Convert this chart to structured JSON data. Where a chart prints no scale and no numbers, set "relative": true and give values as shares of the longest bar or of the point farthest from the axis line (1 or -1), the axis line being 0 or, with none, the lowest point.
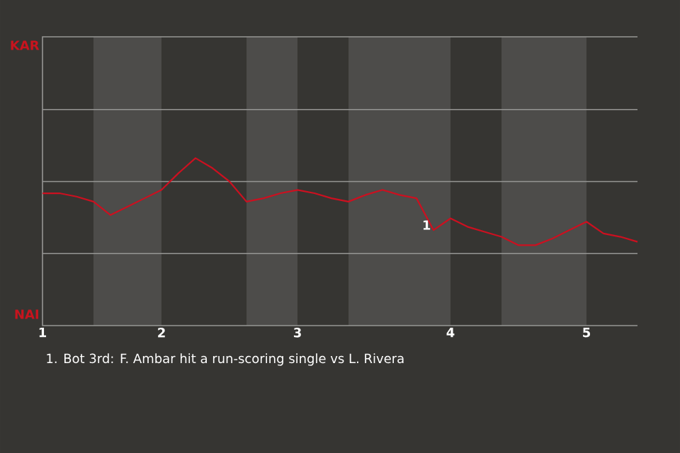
{
  "chart_data": {
    "type": "line",
    "relative": true,
    "categories": [
      "1",
      null,
      null,
      null,
      null,
      null,
      null,
      "2",
      null,
      null,
      null,
      null,
      null,
      null,
      null,
      "3",
      null,
      null,
      null,
      null,
      null,
      null,
      null,
      null,
      "4",
      null,
      null,
      null,
      null,
      null,
      null,
      null,
      "5",
      null,
      null,
      null
    ],
    "marker": "none",
    "line_style": "solid",
    "series": [
      {
        "color": "#cc1020",
        "values": [
          0.79,
          0.79,
          0.77,
          0.74,
          0.66,
          0.71,
          0.76,
          0.81,
          0.91,
          1,
          0.94,
          0.86,
          0.74,
          0.76,
          0.79,
          0.81,
          0.79,
          0.76,
          0.74,
          0.78,
          0.81,
          0.78,
          0.76,
          0.57,
          0.64,
          0.59,
          0.56,
          0.53,
          0.48,
          0.48,
          0.52,
          0.57,
          0.62,
          0.55,
          0.53,
          0.5
        ]
      }
    ],
    "ref_lines": [
      {
        "axis": "y",
        "value": 0.43,
        "color": "#969694"
      },
      {
        "axis": "y",
        "value": 0.86,
        "color": "#969694"
      },
      {
        "axis": "y",
        "value": 1.29,
        "color": "#969694"
      }
    ],
    "annotations": [
      "KAR",
      "NAI",
      {
        "text": "1",
        "y": 0.6
      },
      "1. Bot 3rd: F. Ambar hit a run-scoring single vs L. Rivera"
    ]
  }
}
